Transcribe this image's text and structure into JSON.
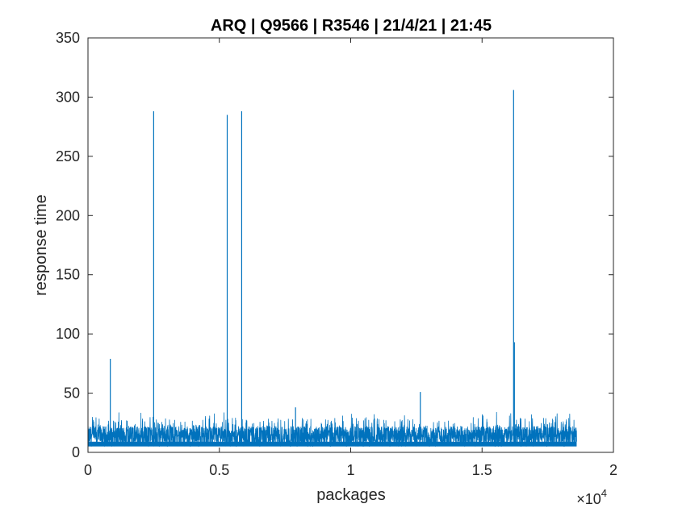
{
  "chart_data": {
    "type": "line",
    "title": "ARQ | Q9566 | R3546 | 21/4/21 | 21:45",
    "xlabel": "packages",
    "ylabel": "response time",
    "x_exponent_label": "×10",
    "x_exponent_power": "4",
    "xlim": [
      0,
      20000
    ],
    "ylim": [
      0,
      350
    ],
    "xticks": [
      0,
      5000,
      10000,
      15000,
      20000
    ],
    "xtick_labels": [
      "0",
      "0.5",
      "1",
      "1.5",
      "2"
    ],
    "yticks": [
      0,
      50,
      100,
      150,
      200,
      250,
      300,
      350
    ],
    "ytick_labels": [
      "0",
      "50",
      "100",
      "150",
      "200",
      "250",
      "300",
      "350"
    ],
    "grid": false,
    "box": true,
    "series": [
      {
        "color": "#0072BD",
        "n_points": 18600,
        "baseline_range": [
          5,
          22
        ],
        "spikes": [
          {
            "x": 850,
            "y": 79
          },
          {
            "x": 2500,
            "y": 288
          },
          {
            "x": 5300,
            "y": 285
          },
          {
            "x": 5850,
            "y": 288
          },
          {
            "x": 7900,
            "y": 38
          },
          {
            "x": 12650,
            "y": 51
          },
          {
            "x": 16200,
            "y": 306
          },
          {
            "x": 16230,
            "y": 93
          }
        ]
      }
    ]
  }
}
